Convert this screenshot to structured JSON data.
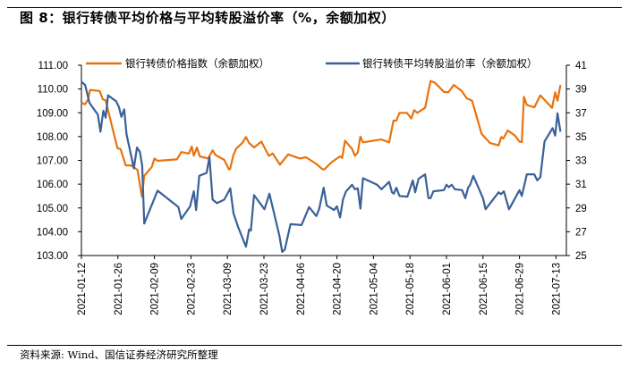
{
  "title": "图 8：银行转债平均价格与平均转股溢价率（%，余额加权）",
  "source": "资料来源: Wind、国信证券经济研究所整理",
  "chart_data": {
    "type": "line",
    "title": "图 8：银行转债平均价格与平均转股溢价率（%，余额加权）",
    "x_unit": "days since 2021-01-12",
    "x_range": [
      0,
      184
    ],
    "x_ticks": [
      {
        "day": 0,
        "label": "2021-01-12"
      },
      {
        "day": 14,
        "label": "2021-01-26"
      },
      {
        "day": 28,
        "label": "2021-02-09"
      },
      {
        "day": 42,
        "label": "2021-02-23"
      },
      {
        "day": 56,
        "label": "2021-03-09"
      },
      {
        "day": 70,
        "label": "2021-03-23"
      },
      {
        "day": 84,
        "label": "2021-04-06"
      },
      {
        "day": 98,
        "label": "2021-04-20"
      },
      {
        "day": 112,
        "label": "2021-05-04"
      },
      {
        "day": 126,
        "label": "2021-05-18"
      },
      {
        "day": 140,
        "label": "2021-06-01"
      },
      {
        "day": 154,
        "label": "2021-06-15"
      },
      {
        "day": 168,
        "label": "2021-06-29"
      },
      {
        "day": 182,
        "label": "2021-07-13"
      }
    ],
    "y_left": {
      "range": [
        103,
        111
      ],
      "ticks": [
        "103.00",
        "104.00",
        "105.00",
        "106.00",
        "107.00",
        "108.00",
        "109.00",
        "110.00",
        "111.00"
      ]
    },
    "y_right": {
      "range": [
        25,
        41
      ],
      "ticks": [
        "25",
        "27",
        "29",
        "31",
        "33",
        "35",
        "37",
        "39",
        "41"
      ]
    },
    "grid": false,
    "legend_position": "top",
    "series": [
      {
        "name": "银行转债价格指数（余额加权）",
        "axis": "left",
        "color": "#E8730E",
        "points": [
          [
            0,
            109.42
          ],
          [
            1.4,
            109.36
          ],
          [
            2.5,
            109.55
          ],
          [
            3.3,
            109.96
          ],
          [
            7,
            109.92
          ],
          [
            8.2,
            109.57
          ],
          [
            9.3,
            109.52
          ],
          [
            13.3,
            107.73
          ],
          [
            13.9,
            107.5
          ],
          [
            15,
            107.48
          ],
          [
            17,
            106.79
          ],
          [
            19,
            106.79
          ],
          [
            21.5,
            106.6
          ],
          [
            23.2,
            105.47
          ],
          [
            24.1,
            106.35
          ],
          [
            27,
            106.73
          ],
          [
            28,
            107.08
          ],
          [
            29.2,
            106.98
          ],
          [
            36.6,
            107.04
          ],
          [
            38.3,
            107.35
          ],
          [
            41.2,
            107.29
          ],
          [
            42.3,
            107.58
          ],
          [
            43.1,
            107.2
          ],
          [
            44.3,
            107.54
          ],
          [
            45.4,
            107.17
          ],
          [
            48.6,
            107.08
          ],
          [
            50.3,
            107.42
          ],
          [
            51.4,
            107.23
          ],
          [
            54.8,
            107.02
          ],
          [
            56.5,
            106.63
          ],
          [
            57,
            106.63
          ],
          [
            58.3,
            107.23
          ],
          [
            59.4,
            107.5
          ],
          [
            61.7,
            107.73
          ],
          [
            63.1,
            107.98
          ],
          [
            64.3,
            107.73
          ],
          [
            66.2,
            107.54
          ],
          [
            69,
            107.79
          ],
          [
            71.9,
            107.19
          ],
          [
            73.4,
            107.29
          ],
          [
            76.1,
            106.82
          ],
          [
            79.3,
            107.25
          ],
          [
            83.8,
            107.08
          ],
          [
            86.1,
            107.13
          ],
          [
            90.1,
            106.85
          ],
          [
            92.4,
            106.63
          ],
          [
            93.2,
            106.62
          ],
          [
            95.8,
            106.91
          ],
          [
            97.5,
            107.04
          ],
          [
            99.2,
            107.17
          ],
          [
            100,
            107.1
          ],
          [
            101.1,
            107.83
          ],
          [
            103.8,
            107.48
          ],
          [
            104.9,
            107.19
          ],
          [
            106,
            107.33
          ],
          [
            107,
            108.0
          ],
          [
            108,
            107.76
          ],
          [
            115.1,
            107.88
          ],
          [
            118,
            107.76
          ],
          [
            119.7,
            108.67
          ],
          [
            120.8,
            108.67
          ],
          [
            122,
            109.0
          ],
          [
            124.8,
            109.0
          ],
          [
            126.5,
            108.76
          ],
          [
            127.6,
            109.11
          ],
          [
            128.8,
            109.0
          ],
          [
            131.8,
            109.21
          ],
          [
            133.9,
            110.34
          ],
          [
            135.6,
            110.26
          ],
          [
            139,
            109.88
          ],
          [
            140.7,
            109.86
          ],
          [
            142.8,
            110.17
          ],
          [
            145.8,
            109.92
          ],
          [
            147.8,
            109.61
          ],
          [
            149.8,
            109.51
          ],
          [
            153.5,
            108.11
          ],
          [
            156.7,
            107.73
          ],
          [
            160,
            107.63
          ],
          [
            161,
            107.98
          ],
          [
            161.8,
            107.92
          ],
          [
            163.5,
            108.26
          ],
          [
            166.3,
            108.04
          ],
          [
            168,
            107.79
          ],
          [
            168.9,
            107.77
          ],
          [
            169.7,
            109.67
          ],
          [
            170.8,
            109.33
          ],
          [
            173.7,
            109.23
          ],
          [
            176,
            109.73
          ],
          [
            180.5,
            109.21
          ],
          [
            181.7,
            109.86
          ],
          [
            182.6,
            109.51
          ],
          [
            183.7,
            110.17
          ]
        ]
      },
      {
        "name": "银行转债平均转股溢价率（余额加权）",
        "axis": "right",
        "color": "#3A6197",
        "points": [
          [
            0,
            39.6
          ],
          [
            1.4,
            39.35
          ],
          [
            3.1,
            37.84
          ],
          [
            6.3,
            36.84
          ],
          [
            7.3,
            35.41
          ],
          [
            8.4,
            37.17
          ],
          [
            9.3,
            36.59
          ],
          [
            10.2,
            38.47
          ],
          [
            13.3,
            37.97
          ],
          [
            14.4,
            37.47
          ],
          [
            15.3,
            36.66
          ],
          [
            16.4,
            37.29
          ],
          [
            17.3,
            35.21
          ],
          [
            20.1,
            32.33
          ],
          [
            21.3,
            34.08
          ],
          [
            22.4,
            33.71
          ],
          [
            23.3,
            32.58
          ],
          [
            24.1,
            27.69
          ],
          [
            29.2,
            30.45
          ],
          [
            37.2,
            29.07
          ],
          [
            38.3,
            28.07
          ],
          [
            41.7,
            29.14
          ],
          [
            43.1,
            30.4
          ],
          [
            44,
            28.82
          ],
          [
            45.2,
            31.7
          ],
          [
            48,
            31.95
          ],
          [
            49.1,
            33.26
          ],
          [
            50.3,
            29.7
          ],
          [
            52,
            29.4
          ],
          [
            54.8,
            29.7
          ],
          [
            57.1,
            30.65
          ],
          [
            58.3,
            28.57
          ],
          [
            60,
            27.44
          ],
          [
            63.1,
            25.74
          ],
          [
            64.3,
            27.19
          ],
          [
            65,
            27.1
          ],
          [
            66.2,
            30.08
          ],
          [
            70.2,
            28.89
          ],
          [
            72.1,
            30.2
          ],
          [
            75.9,
            26.69
          ],
          [
            77,
            25.31
          ],
          [
            78,
            25.5
          ],
          [
            80.2,
            27.64
          ],
          [
            84.4,
            27.56
          ],
          [
            87.3,
            29.07
          ],
          [
            90.1,
            28.32
          ],
          [
            91.2,
            28.94
          ],
          [
            92.9,
            30.7
          ],
          [
            94.1,
            29.2
          ],
          [
            96.9,
            28.82
          ],
          [
            98,
            29.14
          ],
          [
            99.2,
            28.2
          ],
          [
            100.3,
            29.7
          ],
          [
            101.5,
            30.4
          ],
          [
            103.8,
            30.95
          ],
          [
            104.9,
            30.57
          ],
          [
            106,
            30.65
          ],
          [
            107,
            28.94
          ],
          [
            108,
            31.5
          ],
          [
            113.4,
            30.95
          ],
          [
            115.1,
            30.57
          ],
          [
            118,
            31.2
          ],
          [
            119.1,
            30.32
          ],
          [
            119.8,
            30.2
          ],
          [
            120.8,
            30.7
          ],
          [
            122,
            30.0
          ],
          [
            125,
            29.95
          ],
          [
            127.1,
            31.32
          ],
          [
            128,
            30.32
          ],
          [
            129.3,
            31.45
          ],
          [
            131.8,
            31.83
          ],
          [
            133.1,
            29.82
          ],
          [
            133.9,
            29.82
          ],
          [
            135,
            30.4
          ],
          [
            139,
            30.5
          ],
          [
            140,
            30.95
          ],
          [
            140.9,
            30.75
          ],
          [
            142,
            30.95
          ],
          [
            143.2,
            30.57
          ],
          [
            146,
            30.5
          ],
          [
            147.2,
            29.82
          ],
          [
            148.3,
            30.7
          ],
          [
            149.1,
            30.95
          ],
          [
            150.3,
            31.7
          ],
          [
            154,
            29.82
          ],
          [
            155,
            28.89
          ],
          [
            160,
            30.32
          ],
          [
            160.9,
            30.15
          ],
          [
            162,
            30.4
          ],
          [
            164,
            28.89
          ],
          [
            168,
            30.5
          ],
          [
            168.9,
            30.0
          ],
          [
            170.8,
            31.83
          ],
          [
            173.7,
            31.83
          ],
          [
            174.8,
            31.32
          ],
          [
            176,
            31.58
          ],
          [
            177.6,
            34.59
          ],
          [
            180.7,
            35.71
          ],
          [
            181.7,
            35.08
          ],
          [
            182.6,
            36.96
          ],
          [
            183.7,
            35.41
          ]
        ]
      }
    ]
  }
}
